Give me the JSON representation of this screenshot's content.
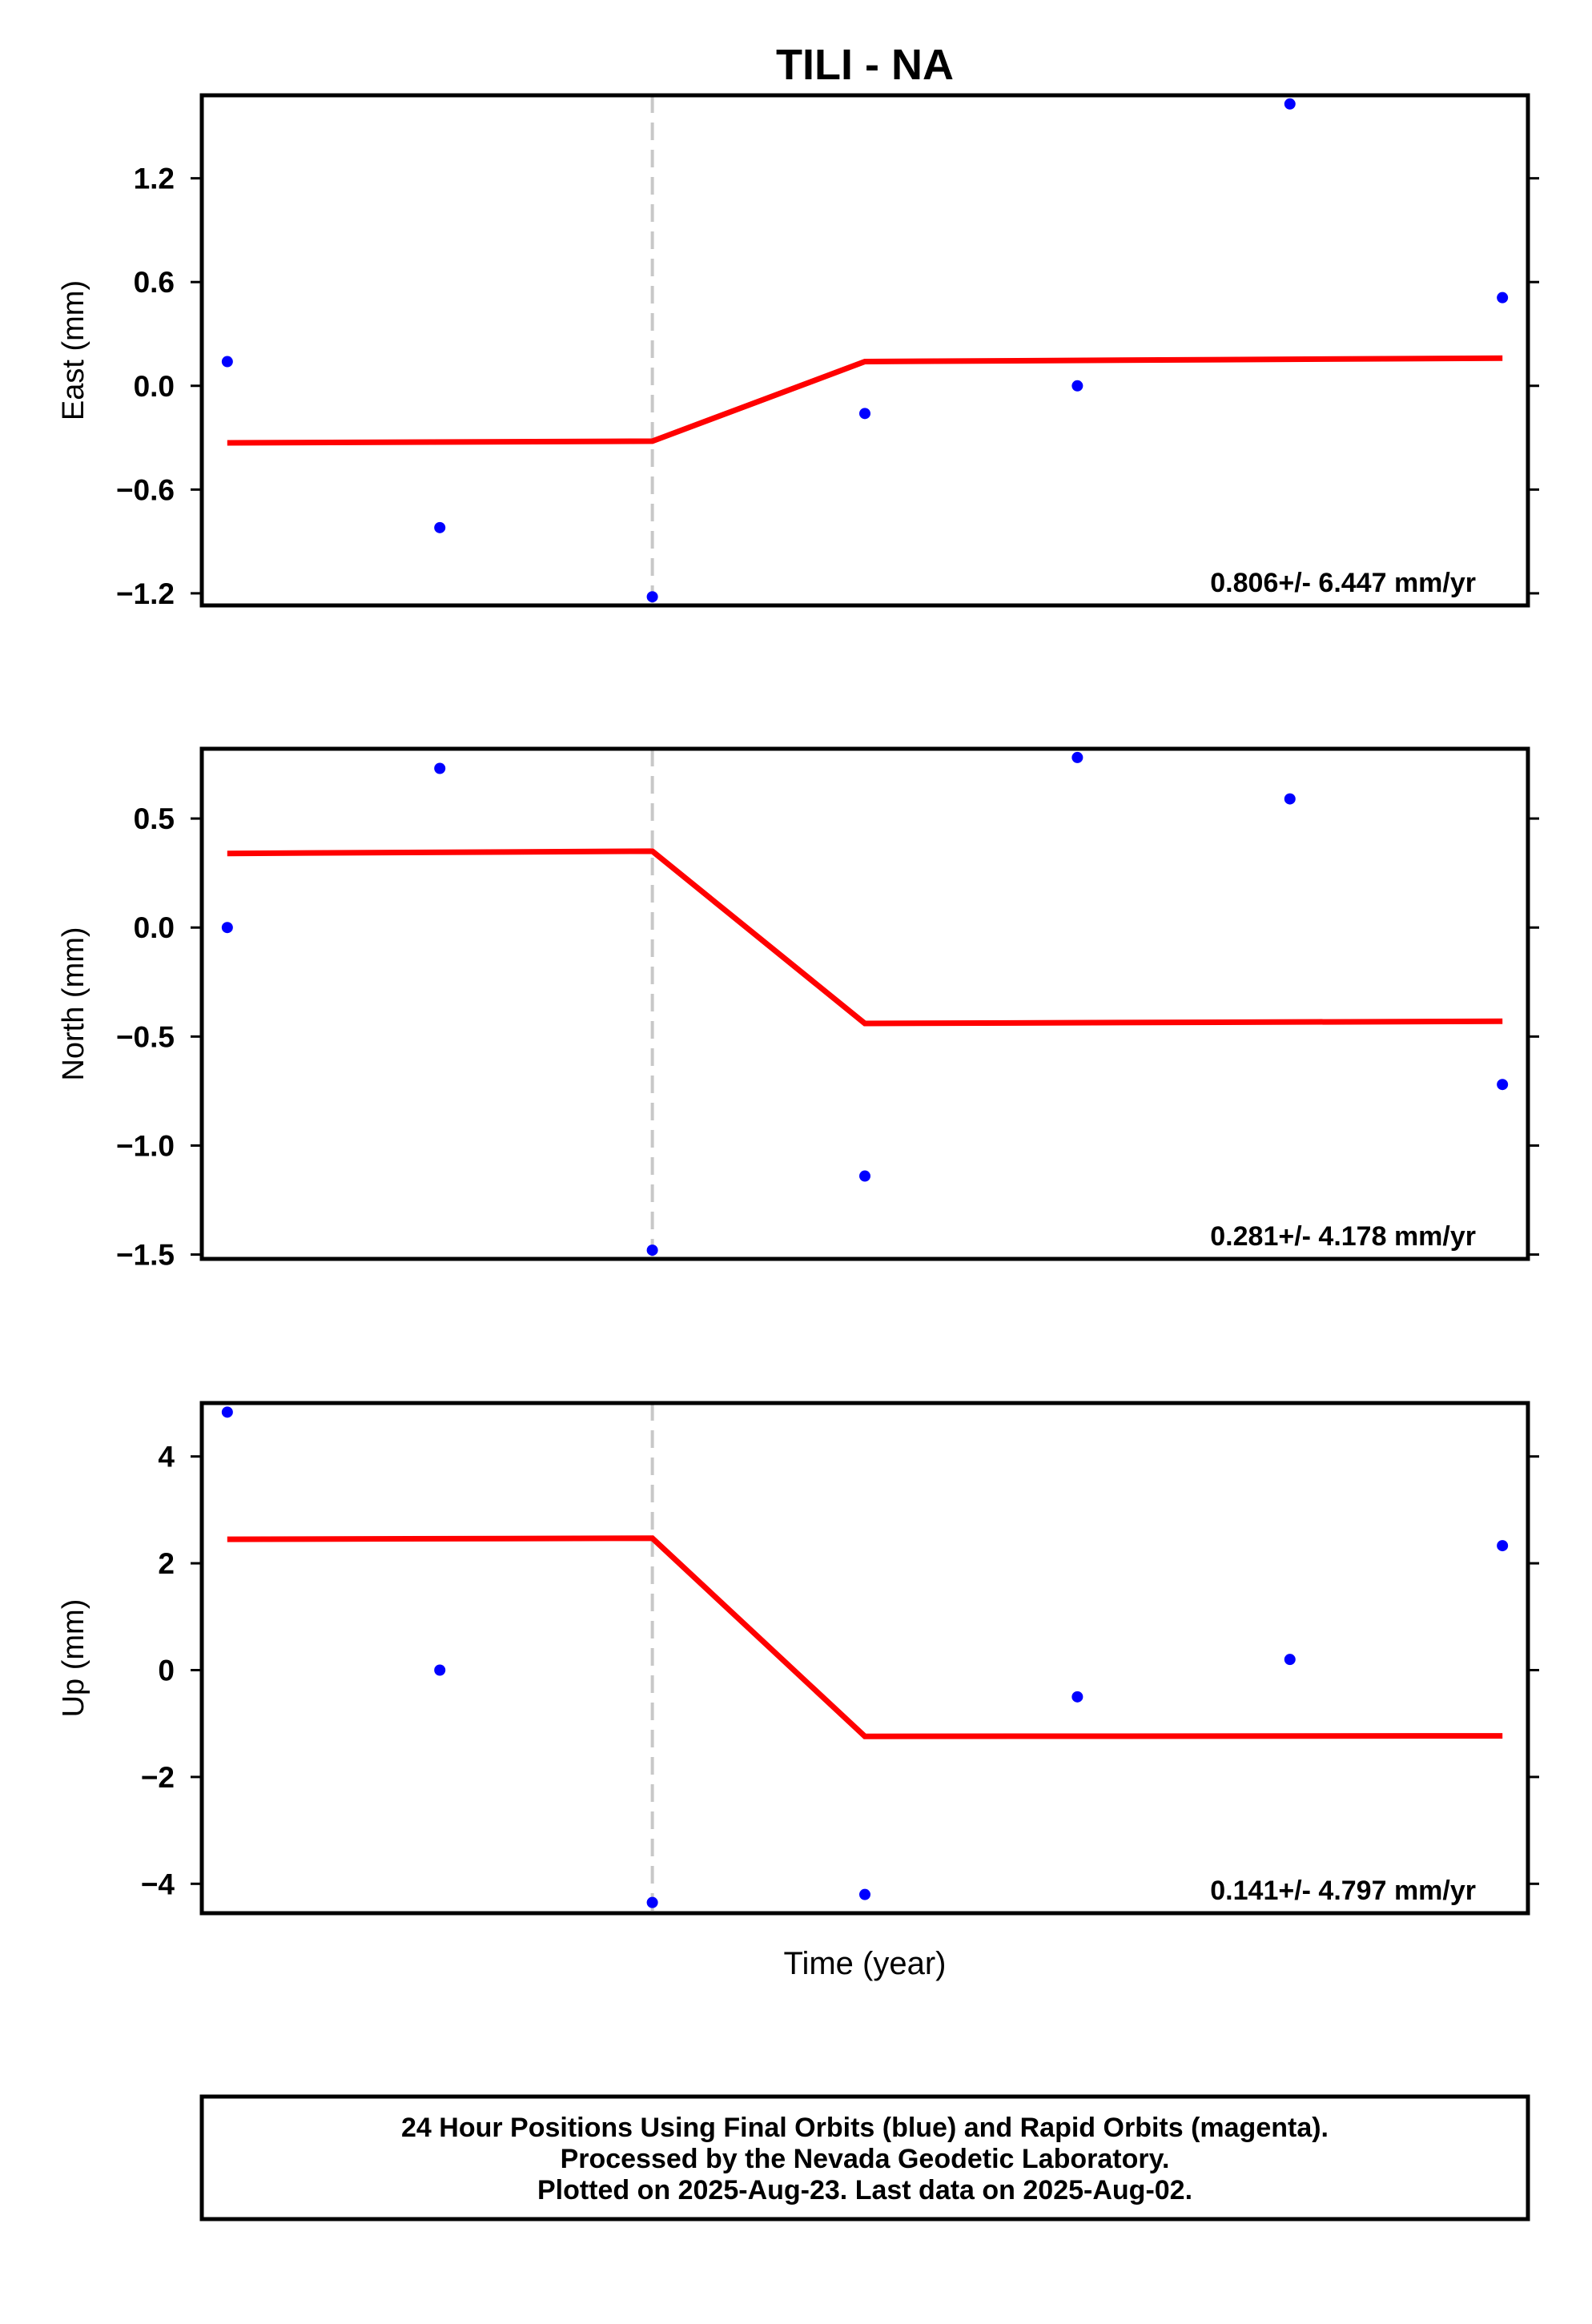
{
  "title": "TILI - NA",
  "xlabel": "Time (year)",
  "colors": {
    "final_orbits": "#0000ff",
    "model_fit": "#ff0000",
    "event_line": "#c8c8c8"
  },
  "footer": [
    "24 Hour Positions Using Final Orbits (blue) and Rapid Orbits (magenta).",
    "Processed by the Nevada Geodetic Laboratory.",
    "Plotted on 2025-Aug-23. Last data on 2025-Aug-02."
  ],
  "chart_data": [
    {
      "type": "scatter",
      "ylabel": "East (mm)",
      "rate_text": "0.806+/- 6.447 mm/yr",
      "ylim": [
        -1.27,
        1.68
      ],
      "yticks": [
        -1.2,
        -0.6,
        0.0,
        0.6,
        1.2
      ],
      "ytick_labels": [
        "−1.2",
        "−0.6",
        "0.0",
        "0.6",
        "1.2"
      ],
      "points": [
        {
          "x": 0,
          "y": 0.14
        },
        {
          "x": 1,
          "y": -0.82
        },
        {
          "x": 2,
          "y": -1.22
        },
        {
          "x": 3,
          "y": -0.16
        },
        {
          "x": 4,
          "y": 0.0
        },
        {
          "x": 5,
          "y": 1.63
        },
        {
          "x": 6,
          "y": 0.51
        }
      ],
      "fit": [
        {
          "x": 0,
          "y": -0.33
        },
        {
          "x": 2,
          "y": -0.32
        },
        {
          "x": 3,
          "y": 0.14
        },
        {
          "x": 6,
          "y": 0.16
        }
      ],
      "event_x": 2
    },
    {
      "type": "scatter",
      "ylabel": "North (mm)",
      "rate_text": "0.281+/- 4.178 mm/yr",
      "ylim": [
        -1.52,
        0.82
      ],
      "yticks": [
        -1.5,
        -1.0,
        -0.5,
        0.0,
        0.5
      ],
      "ytick_labels": [
        "−1.5",
        "−1.0",
        "−0.5",
        "0.0",
        "0.5"
      ],
      "points": [
        {
          "x": 0,
          "y": 0.0
        },
        {
          "x": 1,
          "y": 0.73
        },
        {
          "x": 2,
          "y": -1.48
        },
        {
          "x": 3,
          "y": -1.14
        },
        {
          "x": 4,
          "y": 0.78
        },
        {
          "x": 5,
          "y": 0.59
        },
        {
          "x": 6,
          "y": -0.72
        }
      ],
      "fit": [
        {
          "x": 0,
          "y": 0.34
        },
        {
          "x": 2,
          "y": 0.35
        },
        {
          "x": 3,
          "y": -0.44
        },
        {
          "x": 6,
          "y": -0.43
        }
      ],
      "event_x": 2
    },
    {
      "type": "scatter",
      "ylabel": "Up (mm)",
      "rate_text": "0.141+/- 4.797 mm/yr",
      "ylim": [
        -4.55,
        5.0
      ],
      "yticks": [
        -4,
        -2,
        0,
        2,
        4
      ],
      "ytick_labels": [
        "−4",
        "−2",
        "0",
        "2",
        "4"
      ],
      "points": [
        {
          "x": 0,
          "y": 4.83
        },
        {
          "x": 1,
          "y": 0.0
        },
        {
          "x": 2,
          "y": -4.35
        },
        {
          "x": 3,
          "y": -4.2
        },
        {
          "x": 4,
          "y": -0.5
        },
        {
          "x": 5,
          "y": 0.2
        },
        {
          "x": 6,
          "y": 2.33
        }
      ],
      "fit": [
        {
          "x": 0,
          "y": 2.45
        },
        {
          "x": 2,
          "y": 2.47
        },
        {
          "x": 3,
          "y": -1.24
        },
        {
          "x": 6,
          "y": -1.23
        }
      ],
      "event_x": 2
    }
  ]
}
